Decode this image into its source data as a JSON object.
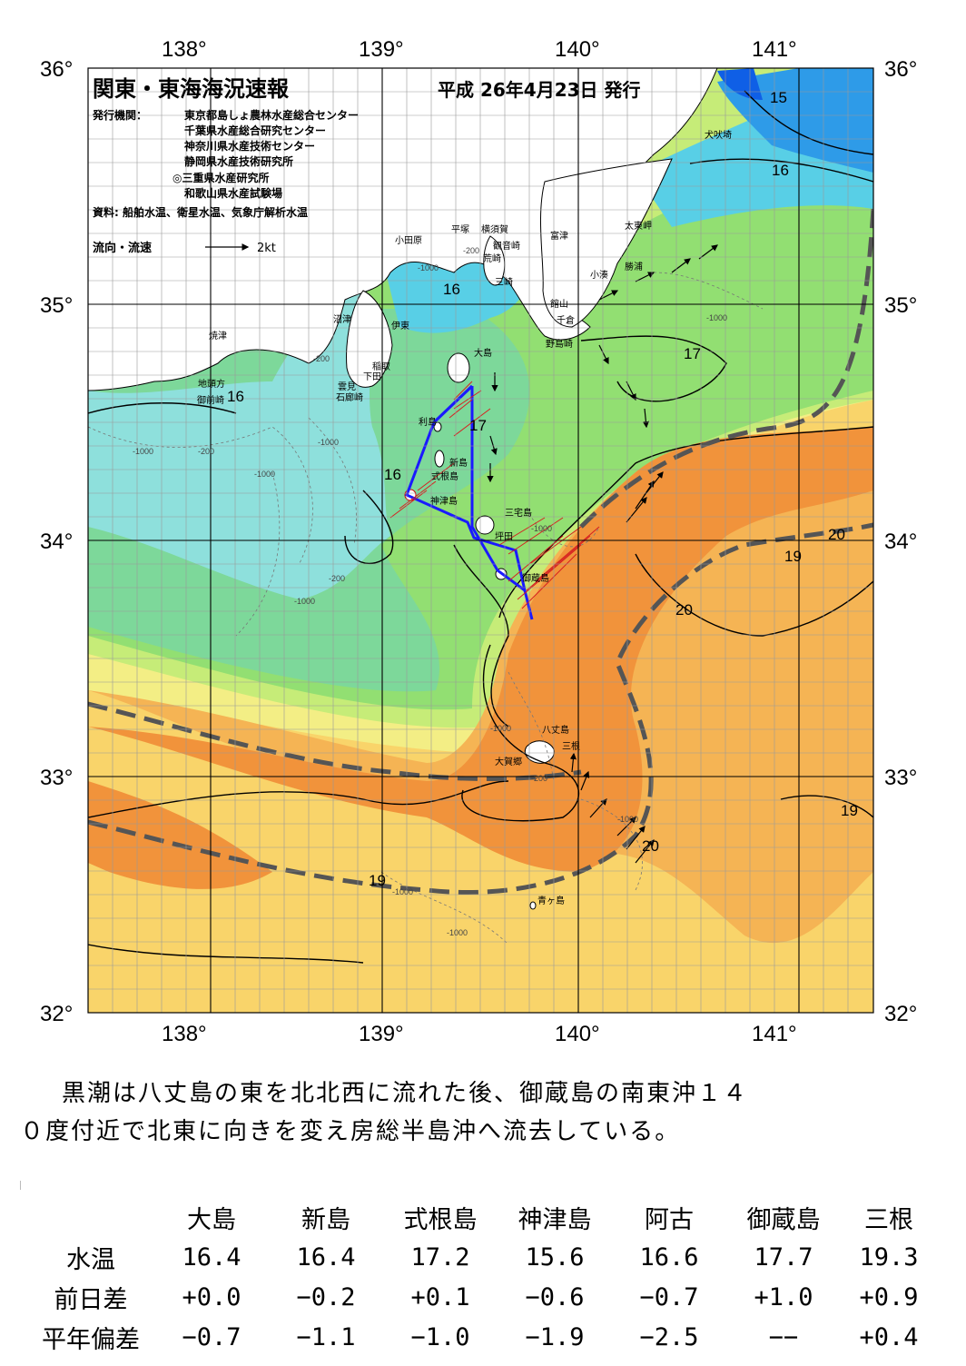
{
  "header": {
    "title": "関東・東海海況速報",
    "date": "平成 26年4月23日 発行",
    "publisher_label": "発行機関：",
    "publishers": [
      "東京都島しょ農林水産総合センター",
      "千葉県水産総合研究センター",
      "神奈川県水産技術センター",
      "静岡県水産技術研究所",
      "◎三重県水産研究所",
      "和歌山県水産試験場"
    ],
    "source": "資料: 船舶水温、衛星水温、気象庁解析水温",
    "legend_label": "流向・流速",
    "legend_unit": "2kt"
  },
  "axes": {
    "lon_top": [
      "138°",
      "139°",
      "140°",
      "141°"
    ],
    "lon_bottom": [
      "138°",
      "139°",
      "140°",
      "141°"
    ],
    "lat_left": [
      "36°",
      "35°",
      "34°",
      "33°",
      "32°"
    ],
    "lat_right": [
      "36°",
      "35°",
      "34°",
      "33°",
      "32°"
    ]
  },
  "places": {
    "inubozaki": "犬吠埼",
    "taitomisaki": "太東岬",
    "katsuura": "勝浦",
    "kominato": "小湊",
    "futtsu": "富津",
    "kannonzaki": "観音崎",
    "yokosuka": "横須賀",
    "hiratsuka": "平塚",
    "arasaki": "荒崎",
    "odawara": "小田原",
    "miura": "三崎",
    "tateyama": "館山",
    "chikura": "千倉",
    "nojimazaki": "野島崎",
    "numazu": "沼津",
    "ito": "伊東",
    "yaizu": "焼津",
    "jitogata": "地頭方",
    "omaezaki": "御前崎",
    "inatori": "稲取",
    "shimoda": "下田",
    "mera": "雲見",
    "irozaki": "石廊崎",
    "oshima": "大島",
    "toshima": "利島",
    "niijima": "新島",
    "shikinejima": "式根島",
    "kozushima": "神津島",
    "miyakejima": "三宅島",
    "tsubota": "坪田",
    "mikurajima": "御蔵島",
    "hachijojima": "八丈島",
    "mitsune": "三根",
    "okago": "大賀郷",
    "aogashima": "青ヶ島"
  },
  "temperature_labels": {
    "t15": "15",
    "t16a": "16",
    "t16b": "16",
    "t16c": "16",
    "t16d": "16",
    "t17a": "17",
    "t17b": "17",
    "t19a": "19",
    "t19b": "19",
    "t19c": "19",
    "t20a": "20",
    "t20b": "20",
    "t20c": "20"
  },
  "depth_labels": {
    "d200": "-200",
    "d1000": "-1000"
  },
  "colors": {
    "water_13": "#0f5fe6",
    "water_14": "#2e9be8",
    "water_15": "#58cfe6",
    "water_16": "#8ee0dc",
    "water_16_5": "#7dd89a",
    "water_17": "#92df72",
    "water_17_5": "#c6ec78",
    "water_18": "#f3ee85",
    "water_19": "#f9d46a",
    "water_20": "#f5b454",
    "water_21": "#f1933b",
    "land": "#ffffff",
    "kuroshio_axis": "#555555",
    "ship_track": "#1a1aff",
    "current_vector": "#d62020"
  },
  "summary": [
    "黒潮は八丈島の東を北北西に流れた後、御蔵島の南東沖１４",
    "０度付近で北東に向きを変え房総半島沖へ流去している。"
  ],
  "table": {
    "columns": [
      "大島",
      "新島",
      "式根島",
      "神津島",
      "阿古",
      "御蔵島",
      "三根"
    ],
    "rows": [
      {
        "label": "水温",
        "values": [
          "16.4",
          "16.4",
          "17.2",
          "15.6",
          "16.6",
          "17.7",
          "19.3"
        ]
      },
      {
        "label": "前日差",
        "values": [
          "+0.0",
          "−0.2",
          "+0.1",
          "−0.6",
          "−0.7",
          "+1.0",
          "+0.9"
        ]
      },
      {
        "label": "平年偏差",
        "values": [
          "−0.7",
          "−1.1",
          "−1.0",
          "−1.9",
          "−2.5",
          "−−",
          "+0.4"
        ]
      }
    ]
  }
}
